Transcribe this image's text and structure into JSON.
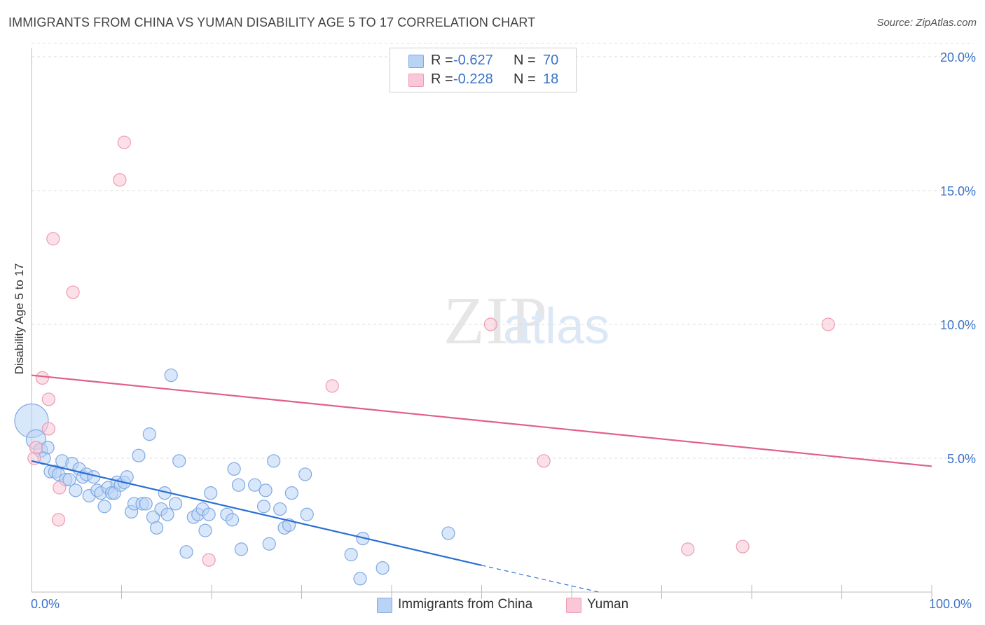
{
  "title": "IMMIGRANTS FROM CHINA VS YUMAN DISABILITY AGE 5 TO 17 CORRELATION CHART",
  "source": "Source: ZipAtlas.com",
  "watermark": {
    "zip": "ZIP",
    "atlas": "atlas"
  },
  "stats": [
    {
      "r_label": "R =",
      "r_value": "-0.627",
      "n_label": "N =",
      "n_value": "70",
      "fill": "#b9d3f5",
      "stroke": "#7fa9e3"
    },
    {
      "r_label": "R =",
      "r_value": "-0.228",
      "n_label": "N =",
      "n_value": "18",
      "fill": "#f9c7d5",
      "stroke": "#ee9ab3"
    }
  ],
  "legend": [
    {
      "label": "Immigrants from China",
      "fill": "#b9d3f5",
      "stroke": "#7fa9e3"
    },
    {
      "label": "Yuman",
      "fill": "#f9c7d5",
      "stroke": "#ee9ab3"
    }
  ],
  "chart_data": {
    "type": "scatter",
    "title": "IMMIGRANTS FROM CHINA VS YUMAN DISABILITY AGE 5 TO 17 CORRELATION CHART",
    "xlabel": "",
    "ylabel": "Disability Age 5 to 17",
    "xlim": [
      0,
      100
    ],
    "ylim": [
      0,
      20.5
    ],
    "x_tick_labels": [
      "0.0%",
      "100.0%"
    ],
    "y_ticks": [
      5,
      10,
      15,
      20
    ],
    "y_tick_labels": [
      "5.0%",
      "10.0%",
      "15.0%",
      "20.0%"
    ],
    "grid": true,
    "legend_position": "bottom-center",
    "series": [
      {
        "name": "Immigrants from China",
        "color": "#7fa9e3",
        "fill": "#b9d3f5",
        "line_color": "#2a6fd6",
        "trend": {
          "x0": 0,
          "y0": 4.9,
          "x1": 50,
          "y1": 1.0,
          "dash_to_x": 63,
          "dash_to_y": 0
        },
        "points": [
          [
            0,
            6.4,
            24
          ],
          [
            0.5,
            5.7,
            14
          ],
          [
            1,
            5.3,
            10
          ],
          [
            1.4,
            5.0,
            9
          ],
          [
            1.8,
            5.4,
            9
          ],
          [
            2.1,
            4.5,
            9
          ],
          [
            2.6,
            4.5,
            9
          ],
          [
            3,
            4.4,
            9
          ],
          [
            3.4,
            4.9,
            9
          ],
          [
            3.8,
            4.2,
            9
          ],
          [
            4.2,
            4.2,
            9
          ],
          [
            4.5,
            4.8,
            9
          ],
          [
            4.9,
            3.8,
            9
          ],
          [
            5.3,
            4.6,
            9
          ],
          [
            5.7,
            4.3,
            9
          ],
          [
            6.1,
            4.4,
            9
          ],
          [
            6.4,
            3.6,
            9
          ],
          [
            6.9,
            4.3,
            9
          ],
          [
            7.3,
            3.8,
            9
          ],
          [
            7.7,
            3.7,
            9
          ],
          [
            8.1,
            3.2,
            9
          ],
          [
            8.5,
            3.9,
            9
          ],
          [
            8.9,
            3.7,
            9
          ],
          [
            9.2,
            3.7,
            9
          ],
          [
            9.5,
            4.1,
            9
          ],
          [
            9.9,
            4.0,
            9
          ],
          [
            10.3,
            4.1,
            9
          ],
          [
            10.6,
            4.3,
            9
          ],
          [
            11.1,
            3.0,
            9
          ],
          [
            11.4,
            3.3,
            9
          ],
          [
            11.9,
            5.1,
            9
          ],
          [
            12.3,
            3.3,
            9
          ],
          [
            12.7,
            3.3,
            9
          ],
          [
            13.1,
            5.9,
            9
          ],
          [
            13.5,
            2.8,
            9
          ],
          [
            13.9,
            2.4,
            9
          ],
          [
            14.4,
            3.1,
            9
          ],
          [
            14.8,
            3.7,
            9
          ],
          [
            15.1,
            2.9,
            9
          ],
          [
            15.5,
            8.1,
            9
          ],
          [
            16,
            3.3,
            9
          ],
          [
            16.4,
            4.9,
            9
          ],
          [
            17.2,
            1.5,
            9
          ],
          [
            18,
            2.8,
            9
          ],
          [
            18.5,
            2.9,
            9
          ],
          [
            19,
            3.1,
            9
          ],
          [
            19.3,
            2.3,
            9
          ],
          [
            19.7,
            2.9,
            9
          ],
          [
            19.9,
            3.7,
            9
          ],
          [
            21.7,
            2.9,
            9
          ],
          [
            22.5,
            4.6,
            9
          ],
          [
            22.3,
            2.7,
            9
          ],
          [
            23,
            4.0,
            9
          ],
          [
            23.3,
            1.6,
            9
          ],
          [
            24.8,
            4.0,
            9
          ],
          [
            25.8,
            3.2,
            9
          ],
          [
            26,
            3.8,
            9
          ],
          [
            26.4,
            1.8,
            9
          ],
          [
            26.9,
            4.9,
            9
          ],
          [
            27.6,
            3.1,
            9
          ],
          [
            28.1,
            2.4,
            9
          ],
          [
            28.6,
            2.5,
            9
          ],
          [
            28.9,
            3.7,
            9
          ],
          [
            30.4,
            4.4,
            9
          ],
          [
            30.6,
            2.9,
            9
          ],
          [
            35.5,
            1.4,
            9
          ],
          [
            36.5,
            0.5,
            9
          ],
          [
            36.8,
            2.0,
            9
          ],
          [
            39,
            0.9,
            9
          ],
          [
            46.3,
            2.2,
            9
          ]
        ]
      },
      {
        "name": "Yuman",
        "color": "#ee9ab3",
        "fill": "#f9c7d5",
        "line_color": "#e0608a",
        "trend": {
          "x0": 0,
          "y0": 8.1,
          "x1": 100,
          "y1": 4.7
        },
        "points": [
          [
            0.3,
            5.0,
            9
          ],
          [
            0.5,
            5.4,
            9
          ],
          [
            1.2,
            8.0,
            9
          ],
          [
            1.9,
            6.1,
            9
          ],
          [
            1.9,
            7.2,
            9
          ],
          [
            2.4,
            13.2,
            9
          ],
          [
            3.0,
            2.7,
            9
          ],
          [
            3.1,
            3.9,
            9
          ],
          [
            4.6,
            11.2,
            9
          ],
          [
            9.8,
            15.4,
            9
          ],
          [
            10.3,
            16.8,
            9
          ],
          [
            19.7,
            1.2,
            9
          ],
          [
            33.4,
            7.7,
            9
          ],
          [
            51,
            10.0,
            9
          ],
          [
            56.9,
            4.9,
            9
          ],
          [
            72.9,
            1.6,
            9
          ],
          [
            88.5,
            10.0,
            9
          ],
          [
            79,
            1.7,
            9
          ]
        ]
      }
    ]
  }
}
